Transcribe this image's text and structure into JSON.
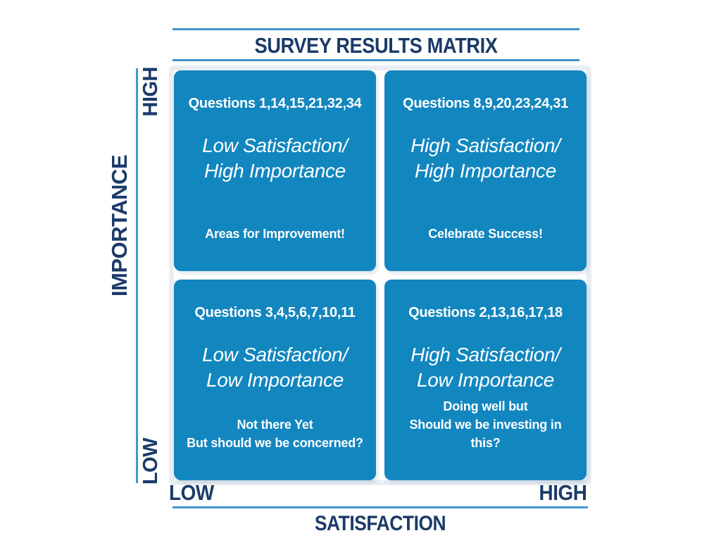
{
  "title": "SURVEY RESULTS MATRIX",
  "y_axis": {
    "label": "IMPORTANCE",
    "high": "HIGH",
    "low": "LOW"
  },
  "x_axis": {
    "label": "SATISFACTION",
    "low": "LOW",
    "high": "HIGH"
  },
  "quadrants": [
    {
      "position": "top-left",
      "questions": "Questions 1,14,15,21,32,34",
      "label_line1": "Low Satisfaction/",
      "label_line2": "High Importance",
      "note_line1": "Areas for Improvement!"
    },
    {
      "position": "top-right",
      "questions": "Questions 8,9,20,23,24,31",
      "label_line1": "High Satisfaction/",
      "label_line2": "High Importance",
      "note_line1": "Celebrate Success!"
    },
    {
      "position": "bottom-left",
      "questions": "Questions 3,4,5,6,7,10,11",
      "label_line1": "Low Satisfaction/",
      "label_line2": "Low Importance",
      "note_line1": "Not there Yet",
      "note_line2": "But should we be concerned?"
    },
    {
      "position": "bottom-right",
      "questions": "Questions 2,13,16,17,18",
      "label_line1": "High Satisfaction/",
      "label_line2": "Low Importance",
      "note_line1": "Doing well but",
      "note_line2": "Should we be investing in this?"
    }
  ],
  "colors": {
    "navy_text": "#1b3a69",
    "axis_line_blue": "#3e99cf",
    "title_rule_blue": "#4293c8",
    "quadrant_blue": "#1286bf",
    "quadrant_text": "#ffffff",
    "matrix_halo": "#e9eef4",
    "background": "#ffffff"
  }
}
